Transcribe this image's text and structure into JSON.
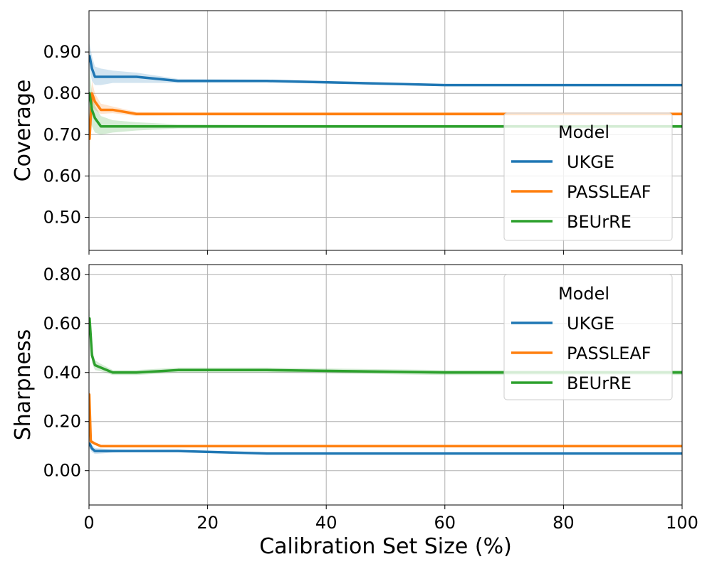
{
  "chart_data": [
    {
      "type": "line",
      "ylabel": "Coverage",
      "xlabel": "",
      "xlim": [
        0,
        100
      ],
      "ylim": [
        0.42,
        1.0
      ],
      "yticks": [
        0.5,
        0.6,
        0.7,
        0.8,
        0.9
      ],
      "ytick_labels": [
        "0.50",
        "0.60",
        "0.70",
        "0.80",
        "0.90"
      ],
      "xticks": [
        0,
        20,
        40,
        60,
        80,
        100
      ],
      "grid": true,
      "legend": {
        "title": "Model",
        "loc": "lower right"
      },
      "series": [
        {
          "name": "UKGE",
          "color": "#1f77b4",
          "x": [
            0.1,
            0.5,
            1,
            2,
            4,
            8,
            15,
            30,
            60,
            100
          ],
          "y": [
            0.89,
            0.86,
            0.84,
            0.84,
            0.84,
            0.84,
            0.83,
            0.83,
            0.82,
            0.82
          ],
          "lo": [
            0.86,
            0.83,
            0.82,
            0.82,
            0.825,
            0.825,
            0.825,
            0.826,
            0.818,
            0.818
          ],
          "hi": [
            0.92,
            0.89,
            0.865,
            0.86,
            0.855,
            0.85,
            0.835,
            0.833,
            0.822,
            0.822
          ]
        },
        {
          "name": "PASSLEAF",
          "color": "#ff7f0e",
          "x": [
            0.1,
            0.5,
            1,
            2,
            4,
            8,
            15,
            30,
            60,
            100
          ],
          "y": [
            0.69,
            0.8,
            0.78,
            0.76,
            0.76,
            0.75,
            0.75,
            0.75,
            0.75,
            0.75
          ],
          "lo": [
            0.65,
            0.77,
            0.76,
            0.75,
            0.752,
            0.745,
            0.746,
            0.746,
            0.746,
            0.746
          ],
          "hi": [
            0.73,
            0.83,
            0.8,
            0.775,
            0.768,
            0.755,
            0.754,
            0.754,
            0.754,
            0.754
          ]
        },
        {
          "name": "BEUrRE",
          "color": "#2ca02c",
          "x": [
            0.1,
            0.5,
            1,
            2,
            4,
            8,
            15,
            30,
            60,
            100
          ],
          "y": [
            0.8,
            0.76,
            0.74,
            0.72,
            0.72,
            0.72,
            0.72,
            0.72,
            0.72,
            0.72
          ],
          "lo": [
            0.74,
            0.72,
            0.705,
            0.7,
            0.705,
            0.71,
            0.715,
            0.716,
            0.716,
            0.716
          ],
          "hi": [
            0.86,
            0.8,
            0.77,
            0.745,
            0.735,
            0.73,
            0.725,
            0.724,
            0.724,
            0.724
          ]
        }
      ]
    },
    {
      "type": "line",
      "ylabel": "Sharpness",
      "xlabel": "Calibration Set Size (%)",
      "xlim": [
        0,
        100
      ],
      "ylim": [
        -0.14,
        0.84
      ],
      "yticks": [
        0.0,
        0.2,
        0.4,
        0.6,
        0.8
      ],
      "ytick_labels": [
        "0.00",
        "0.20",
        "0.40",
        "0.60",
        "0.80"
      ],
      "xticks": [
        0,
        20,
        40,
        60,
        80,
        100
      ],
      "xtick_labels": [
        "0",
        "20",
        "40",
        "60",
        "80",
        "100"
      ],
      "grid": true,
      "legend": {
        "title": "Model",
        "loc": "upper right"
      },
      "series": [
        {
          "name": "UKGE",
          "color": "#1f77b4",
          "x": [
            0.1,
            0.5,
            1,
            2,
            4,
            8,
            15,
            30,
            60,
            100
          ],
          "y": [
            0.11,
            0.09,
            0.08,
            0.08,
            0.08,
            0.08,
            0.08,
            0.07,
            0.07,
            0.07
          ],
          "lo": [
            0.09,
            0.075,
            0.068,
            0.07,
            0.074,
            0.076,
            0.077,
            0.068,
            0.068,
            0.068
          ],
          "hi": [
            0.13,
            0.105,
            0.092,
            0.09,
            0.086,
            0.084,
            0.083,
            0.072,
            0.072,
            0.072
          ]
        },
        {
          "name": "PASSLEAF",
          "color": "#ff7f0e",
          "x": [
            0.05,
            0.3,
            1,
            2,
            4,
            8,
            15,
            30,
            60,
            100
          ],
          "y": [
            0.31,
            0.12,
            0.11,
            0.1,
            0.1,
            0.1,
            0.1,
            0.1,
            0.1,
            0.1
          ],
          "lo": [
            0.28,
            0.11,
            0.104,
            0.097,
            0.098,
            0.098,
            0.098,
            0.098,
            0.098,
            0.098
          ],
          "hi": [
            0.34,
            0.13,
            0.116,
            0.103,
            0.102,
            0.102,
            0.102,
            0.102,
            0.102,
            0.102
          ]
        },
        {
          "name": "BEUrRE",
          "color": "#2ca02c",
          "x": [
            0.1,
            0.5,
            1,
            2,
            4,
            8,
            15,
            30,
            60,
            100
          ],
          "y": [
            0.62,
            0.47,
            0.43,
            0.42,
            0.4,
            0.4,
            0.41,
            0.41,
            0.4,
            0.4
          ],
          "lo": [
            0.58,
            0.44,
            0.41,
            0.405,
            0.39,
            0.39,
            0.4,
            0.4,
            0.39,
            0.39
          ],
          "hi": [
            0.66,
            0.5,
            0.45,
            0.435,
            0.41,
            0.41,
            0.42,
            0.42,
            0.41,
            0.41
          ]
        }
      ]
    }
  ]
}
